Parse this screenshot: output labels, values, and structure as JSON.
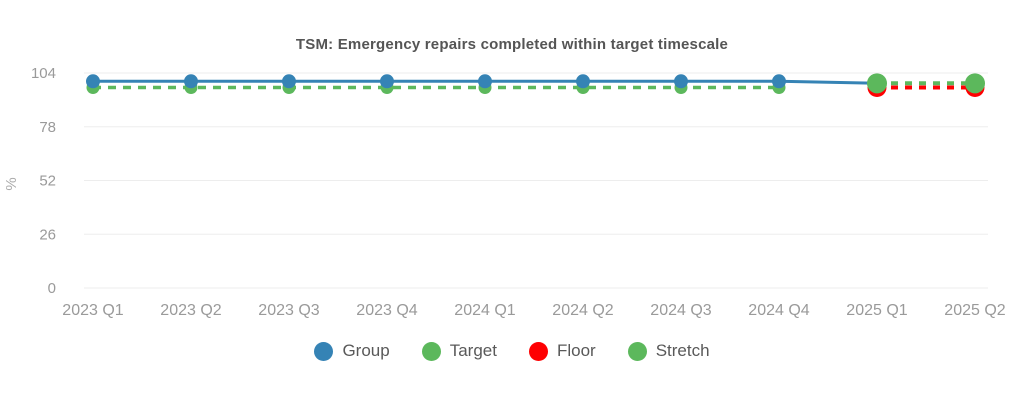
{
  "title": "TSM: Emergency repairs completed within target timescale",
  "colors": {
    "group_blue": "#3583b5",
    "target_green": "#5cb85c",
    "floor_red": "#fe0002",
    "stretch_green": "#5cb85c",
    "grid_line": "#ededed",
    "tick_text": "#9a9a9a",
    "axis_title_text": "#ababab",
    "title_text": "#555555",
    "legend_text": "#595959"
  },
  "chart_data": {
    "type": "line",
    "categories": [
      "2023 Q1",
      "2023 Q2",
      "2023 Q3",
      "2023 Q4",
      "2024 Q1",
      "2024 Q2",
      "2024 Q3",
      "2024 Q4",
      "2025 Q1",
      "2025 Q2"
    ],
    "title": "TSM: Emergency repairs completed within target timescale",
    "xlabel": "",
    "ylabel": "%",
    "yticks": [
      0,
      26,
      52,
      78,
      104
    ],
    "ylim": [
      0,
      104
    ],
    "grid": "horizontal",
    "legend_position": "bottom",
    "series": [
      {
        "name": "Group",
        "color": "#3583b5",
        "style": "solid",
        "values": [
          100,
          100,
          100,
          100,
          100,
          100,
          100,
          100,
          99,
          null
        ]
      },
      {
        "name": "Target",
        "color": "#5cb85c",
        "style": "dashed",
        "values": [
          97,
          97,
          97,
          97,
          97,
          97,
          97,
          97,
          null,
          null
        ]
      },
      {
        "name": "Floor",
        "color": "#fe0002",
        "style": "dashed",
        "values": [
          null,
          null,
          null,
          null,
          null,
          null,
          null,
          null,
          97,
          97
        ]
      },
      {
        "name": "Stretch",
        "color": "#5cb85c",
        "style": "dashed",
        "values": [
          null,
          null,
          null,
          null,
          null,
          null,
          null,
          null,
          99,
          99
        ]
      }
    ],
    "legend": [
      {
        "label": "Group",
        "color": "#3583b5"
      },
      {
        "label": "Target",
        "color": "#5cb85c"
      },
      {
        "label": "Floor",
        "color": "#fe0002"
      },
      {
        "label": "Stretch",
        "color": "#5cb85c"
      }
    ]
  }
}
